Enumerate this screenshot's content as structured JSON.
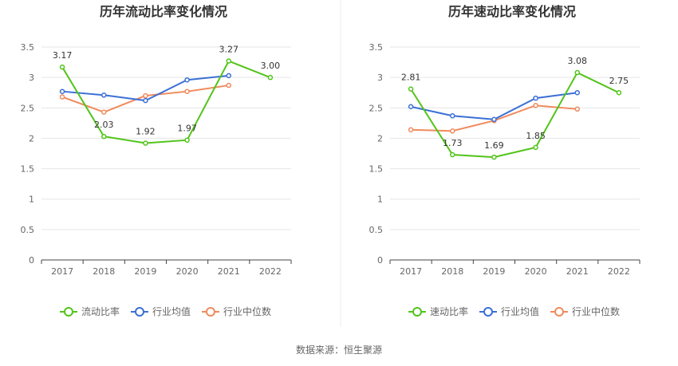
{
  "source_note": "数据来源：恒生聚源",
  "colors": {
    "primary": "#52c41a",
    "industry_avg": "#3b6fd6",
    "industry_median": "#f08a5d",
    "grid": "#e6e6e6",
    "axis": "#444444"
  },
  "chart_data": [
    {
      "type": "line",
      "title": "历年流动比率变化情况",
      "categories": [
        "2017",
        "2018",
        "2019",
        "2020",
        "2021",
        "2022"
      ],
      "ylim": [
        0,
        3.5
      ],
      "yticks": [
        "0",
        "0.5",
        "1",
        "1.5",
        "2",
        "2.5",
        "3",
        "3.5"
      ],
      "grid": true,
      "legend_position": "bottom",
      "series": [
        {
          "name": "流动比率",
          "values": [
            3.17,
            2.03,
            1.92,
            1.97,
            3.27,
            3.0
          ],
          "labels": [
            "3.17",
            "2.03",
            "1.92",
            "1.97",
            "3.27",
            "3.00"
          ]
        },
        {
          "name": "行业均值",
          "values": [
            2.77,
            2.71,
            2.62,
            2.96,
            3.03,
            null
          ]
        },
        {
          "name": "行业中位数",
          "values": [
            2.68,
            2.43,
            2.7,
            2.77,
            2.87,
            null
          ]
        }
      ]
    },
    {
      "type": "line",
      "title": "历年速动比率变化情况",
      "categories": [
        "2017",
        "2018",
        "2019",
        "2020",
        "2021",
        "2022"
      ],
      "ylim": [
        0,
        3.5
      ],
      "yticks": [
        "0",
        "0.5",
        "1",
        "1.5",
        "2",
        "2.5",
        "3",
        "3.5"
      ],
      "grid": true,
      "legend_position": "bottom",
      "series": [
        {
          "name": "速动比率",
          "values": [
            2.81,
            1.73,
            1.69,
            1.85,
            3.08,
            2.75
          ],
          "labels": [
            "2.81",
            "1.73",
            "1.69",
            "1.85",
            "3.08",
            "2.75"
          ]
        },
        {
          "name": "行业均值",
          "values": [
            2.52,
            2.37,
            2.31,
            2.66,
            2.75,
            null
          ]
        },
        {
          "name": "行业中位数",
          "values": [
            2.14,
            2.12,
            2.29,
            2.54,
            2.48,
            null
          ]
        }
      ]
    }
  ]
}
